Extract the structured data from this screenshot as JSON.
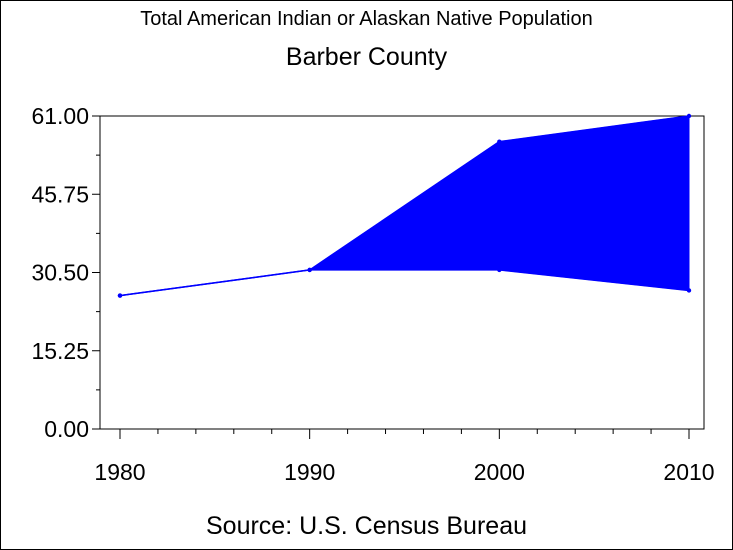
{
  "chart_data": {
    "type": "area",
    "title": "Total American Indian or Alaskan Native Population",
    "subtitle": "Barber County",
    "source": "Source: U.S. Census Bureau",
    "x": [
      1980,
      1990,
      2000,
      2010
    ],
    "x_tick_labels": [
      "1980",
      "1990",
      "2000",
      "2010"
    ],
    "y_tick_values": [
      0,
      15.25,
      30.5,
      45.75,
      61
    ],
    "y_tick_labels": [
      "0.00",
      "15.25",
      "30.50",
      "45.75",
      "61.00"
    ],
    "ylim": [
      0,
      61
    ],
    "xlim": [
      1980,
      2010
    ],
    "series": [
      {
        "values": [
          26,
          31,
          56,
          61
        ]
      },
      {
        "values": [
          26,
          31,
          31,
          27
        ]
      }
    ],
    "fill_between_series": true,
    "fill_color": "#0000ff",
    "line_color": "#0000ff",
    "grid": false,
    "legend": "none"
  }
}
